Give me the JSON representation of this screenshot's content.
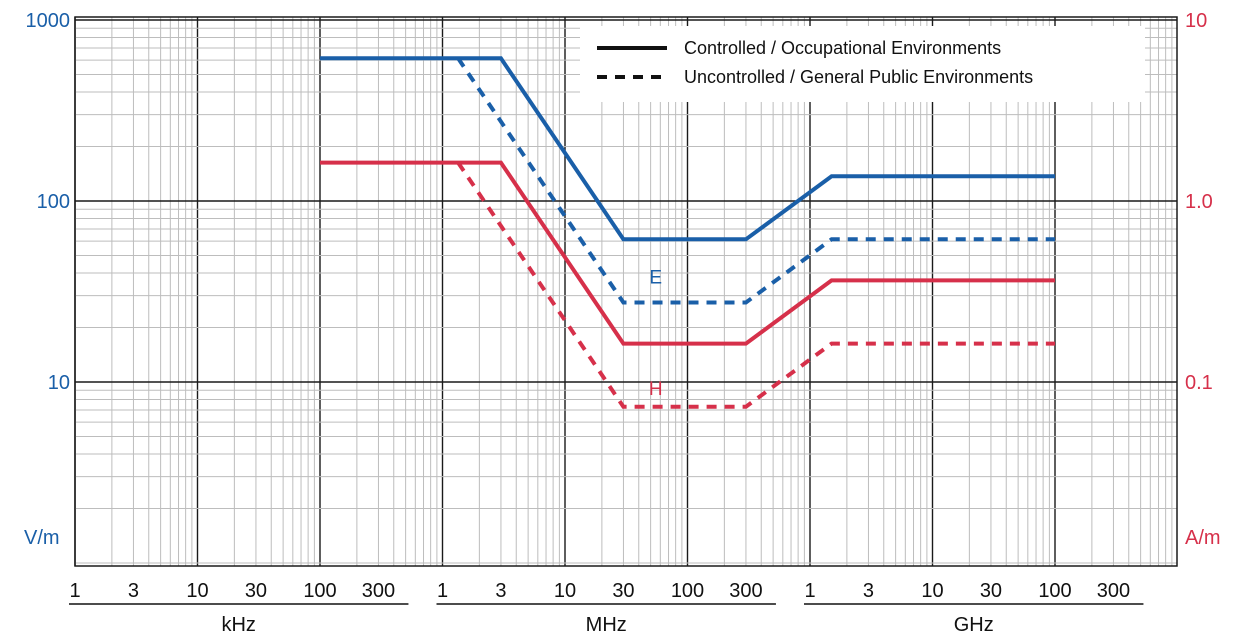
{
  "chart_data": {
    "type": "line",
    "title": "",
    "x_scale": "log",
    "y_scale": "log",
    "xlim": [
      "1 Hz",
      "1000 GHz"
    ],
    "left_axis": {
      "unit_label": "V/m",
      "ticks": [
        "1000",
        "100",
        "10"
      ],
      "ylim": [
        1,
        1000
      ],
      "color": "#1a5fa8"
    },
    "right_axis": {
      "unit_label": "A/m",
      "ticks": [
        "10",
        "1.0",
        "0.1"
      ],
      "ylim": [
        0.01,
        10
      ],
      "color": "#d6304a"
    },
    "x_tick_labels": [
      "1",
      "3",
      "10",
      "30",
      "100",
      "300",
      "1",
      "3",
      "10",
      "30",
      "100",
      "300",
      "1",
      "3",
      "10",
      "30",
      "100",
      "300"
    ],
    "x_groups": [
      "kHz",
      "MHz",
      "GHz"
    ],
    "grid": true,
    "legend": {
      "placement": "top-right",
      "entries": [
        {
          "label": "Controlled / Occupational Environments",
          "style": "solid"
        },
        {
          "label": "Uncontrolled / General Public Environments",
          "style": "dashed"
        }
      ]
    },
    "series": [
      {
        "name": "E",
        "axis": "left",
        "color": "#1a5fa8",
        "style": "solid",
        "x": [
          "100 kHz",
          "3 MHz",
          "30 MHz",
          "300 MHz",
          "1.5 GHz",
          "100 GHz"
        ],
        "y": [
          614,
          614,
          61.4,
          61.4,
          137,
          137
        ]
      },
      {
        "name": "E",
        "axis": "left",
        "color": "#1a5fa8",
        "style": "dashed",
        "x": [
          "1.34 MHz",
          "30 MHz",
          "300 MHz",
          "1.5 GHz",
          "100 GHz"
        ],
        "y": [
          614,
          27.5,
          27.5,
          61.4,
          61.4
        ]
      },
      {
        "name": "H",
        "axis": "right",
        "color": "#d6304a",
        "style": "solid",
        "x": [
          "100 kHz",
          "3 MHz",
          "30 MHz",
          "300 MHz",
          "1.5 GHz",
          "100 GHz"
        ],
        "y": [
          1.63,
          1.63,
          0.163,
          0.163,
          0.364,
          0.364
        ]
      },
      {
        "name": "H",
        "axis": "right",
        "color": "#d6304a",
        "style": "dashed",
        "x": [
          "1.34 MHz",
          "30 MHz",
          "300 MHz",
          "1.5 GHz",
          "100 GHz"
        ],
        "y": [
          1.63,
          0.073,
          0.073,
          0.163,
          0.163
        ]
      }
    ],
    "annotations": [
      {
        "text": "E",
        "color": "#1a5fa8"
      },
      {
        "text": "H",
        "color": "#d6304a"
      }
    ]
  }
}
